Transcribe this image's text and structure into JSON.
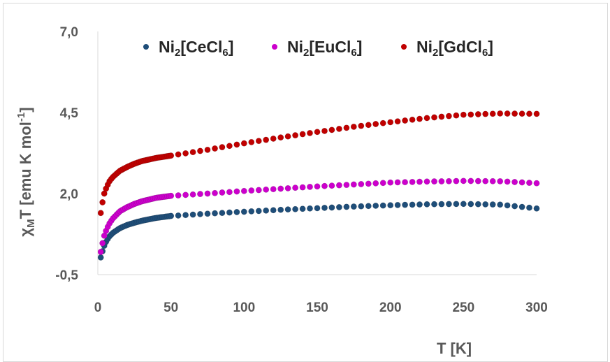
{
  "chart_data": {
    "type": "scatter",
    "title": "",
    "xlabel": "T [K]",
    "ylabel": {
      "symbol": "χ",
      "sub": "M",
      "main": "T [emu K mol",
      "sup": "-1",
      "close": "]"
    },
    "xlim": [
      0,
      300
    ],
    "ylim": [
      -0.5,
      7.0
    ],
    "xticks": [
      0,
      50,
      100,
      150,
      200,
      250,
      300
    ],
    "xtick_labels": [
      "0",
      "50",
      "100",
      "150",
      "200",
      "250",
      "300"
    ],
    "yticks": [
      -0.5,
      2.0,
      4.5,
      7.0
    ],
    "ytick_labels": [
      "-0,5",
      "2,0",
      "4,5",
      "7,0"
    ],
    "grid": "none",
    "legend_position": "top",
    "series": [
      {
        "name": {
          "base": "Ni",
          "sub1": "2",
          "mid": "[CeCl",
          "sub2": "6",
          "end": "]"
        },
        "color": "#1f4e79",
        "x": [
          2,
          4,
          6,
          8,
          10,
          15,
          20,
          25,
          30,
          40,
          50,
          75,
          100,
          125,
          150,
          175,
          200,
          225,
          250,
          275,
          300
        ],
        "y": [
          0.03,
          0.35,
          0.55,
          0.68,
          0.78,
          0.93,
          1.03,
          1.1,
          1.16,
          1.25,
          1.31,
          1.38,
          1.44,
          1.5,
          1.55,
          1.6,
          1.64,
          1.67,
          1.68,
          1.66,
          1.54
        ]
      },
      {
        "name": {
          "base": "Ni",
          "sub1": "2",
          "mid": "[EuCl",
          "sub2": "6",
          "end": "]"
        },
        "color": "#cc00cc",
        "x": [
          2,
          4,
          6,
          8,
          10,
          15,
          20,
          25,
          30,
          40,
          50,
          75,
          100,
          125,
          150,
          175,
          200,
          225,
          250,
          275,
          300
        ],
        "y": [
          0.2,
          0.65,
          0.9,
          1.08,
          1.22,
          1.45,
          1.58,
          1.68,
          1.76,
          1.87,
          1.93,
          2.0,
          2.08,
          2.15,
          2.22,
          2.28,
          2.34,
          2.37,
          2.39,
          2.38,
          2.32
        ]
      },
      {
        "name": {
          "base": "Ni",
          "sub1": "2",
          "mid": "[GdCl",
          "sub2": "6",
          "end": "]"
        },
        "color": "#c00000",
        "x": [
          2,
          4,
          6,
          8,
          10,
          15,
          20,
          25,
          30,
          40,
          50,
          75,
          100,
          125,
          150,
          175,
          200,
          225,
          250,
          275,
          300
        ],
        "y": [
          1.4,
          1.95,
          2.2,
          2.38,
          2.5,
          2.7,
          2.82,
          2.92,
          3.0,
          3.1,
          3.17,
          3.35,
          3.55,
          3.73,
          3.9,
          4.06,
          4.2,
          4.33,
          4.43,
          4.47,
          4.46
        ]
      }
    ]
  }
}
